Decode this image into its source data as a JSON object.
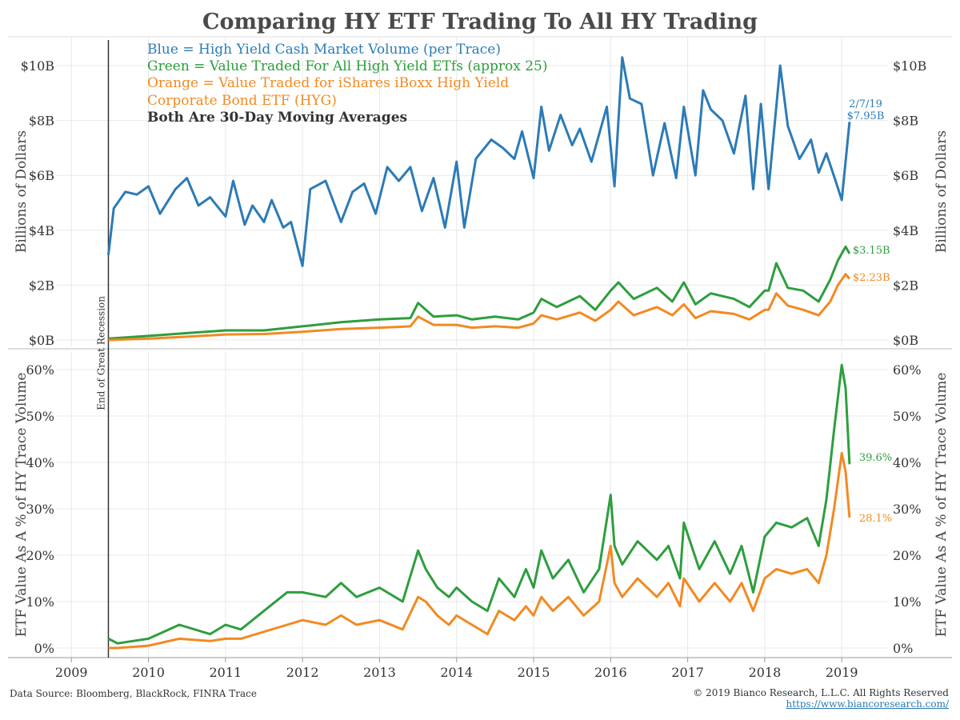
{
  "title": "Comparing HY ETF Trading To All HY Trading",
  "legend": {
    "blue": "Blue = High Yield Cash Market Volume (per Trace)",
    "green": "Green = Value Traded For All High Yield ETfs (approx 25)",
    "orange1": "Orange = Value Traded for iShares iBoxx High Yield",
    "orange2": "Corporate Bond ETF (HYG)",
    "note": "Both Are 30-Day Moving Averages"
  },
  "colors": {
    "blue": "#2c7bb6",
    "green": "#2e9e3e",
    "orange": "#f28a22",
    "grid": "#e8e8e8",
    "axis": "#666666"
  },
  "footer": {
    "source": "Data Source: Bloomberg, BlackRock, FINRA Trace",
    "copyright": "© 2019 Bianco Research, L.L.C. All Rights Reserved",
    "url": "https://www.biancoresearch.com/"
  },
  "chart_data": [
    {
      "type": "line",
      "panel": "top",
      "ylabel": "Billions of Dollars",
      "ylim": [
        0,
        10.5
      ],
      "yticks": [
        0,
        2,
        4,
        6,
        8,
        10
      ],
      "ytick_labels": [
        "$0B",
        "$2B",
        "$4B",
        "$6B",
        "$8B",
        "$10B"
      ],
      "xlim": [
        2008.8,
        2019.6
      ],
      "xticks": [
        2009,
        2010,
        2011,
        2012,
        2013,
        2014,
        2015,
        2016,
        2017,
        2018,
        2019
      ],
      "vline": {
        "x": 2009.48,
        "label": "End of Great Recession"
      },
      "annotations": {
        "date": "2/7/19",
        "blue": "$7.95B",
        "green": "$3.15B",
        "orange": "$2.23B"
      },
      "series": [
        {
          "color": "blue",
          "x": [
            2009.48,
            2009.55,
            2009.7,
            2009.85,
            2010.0,
            2010.15,
            2010.35,
            2010.5,
            2010.65,
            2010.8,
            2011.0,
            2011.1,
            2011.25,
            2011.35,
            2011.5,
            2011.6,
            2011.75,
            2011.85,
            2012.0,
            2012.1,
            2012.3,
            2012.5,
            2012.65,
            2012.8,
            2012.95,
            2013.1,
            2013.25,
            2013.4,
            2013.55,
            2013.7,
            2013.85,
            2014.0,
            2014.1,
            2014.25,
            2014.45,
            2014.6,
            2014.75,
            2014.85,
            2015.0,
            2015.1,
            2015.2,
            2015.35,
            2015.5,
            2015.6,
            2015.75,
            2015.95,
            2016.05,
            2016.15,
            2016.25,
            2016.4,
            2016.55,
            2016.7,
            2016.85,
            2016.95,
            2017.1,
            2017.2,
            2017.3,
            2017.45,
            2017.6,
            2017.75,
            2017.85,
            2017.95,
            2018.05,
            2018.2,
            2018.3,
            2018.45,
            2018.6,
            2018.7,
            2018.8,
            2018.92,
            2019.0,
            2019.1
          ],
          "values": [
            3.1,
            4.8,
            5.4,
            5.3,
            5.6,
            4.6,
            5.5,
            5.9,
            4.9,
            5.2,
            4.5,
            5.8,
            4.2,
            4.9,
            4.3,
            5.1,
            4.1,
            4.3,
            2.7,
            5.5,
            5.8,
            4.3,
            5.4,
            5.7,
            4.6,
            6.3,
            5.8,
            6.3,
            4.7,
            5.9,
            4.1,
            6.5,
            4.1,
            6.6,
            7.3,
            7.0,
            6.6,
            7.6,
            5.9,
            8.5,
            6.9,
            8.2,
            7.1,
            7.7,
            6.5,
            8.5,
            5.6,
            10.3,
            8.8,
            8.6,
            6.0,
            7.9,
            5.9,
            8.5,
            6.0,
            9.1,
            8.4,
            8.0,
            6.8,
            8.9,
            5.5,
            8.6,
            5.5,
            10.0,
            7.8,
            6.6,
            7.3,
            6.1,
            6.8,
            5.8,
            5.1,
            7.95
          ]
        },
        {
          "color": "green",
          "x": [
            2009.48,
            2010.0,
            2010.5,
            2011.0,
            2011.5,
            2012.0,
            2012.5,
            2013.0,
            2013.4,
            2013.5,
            2013.7,
            2014.0,
            2014.2,
            2014.5,
            2014.8,
            2015.0,
            2015.1,
            2015.3,
            2015.6,
            2015.8,
            2016.0,
            2016.1,
            2016.3,
            2016.6,
            2016.8,
            2016.95,
            2017.1,
            2017.3,
            2017.6,
            2017.8,
            2018.0,
            2018.05,
            2018.15,
            2018.3,
            2018.5,
            2018.7,
            2018.85,
            2018.95,
            2019.05,
            2019.1
          ],
          "values": [
            0.05,
            0.15,
            0.25,
            0.35,
            0.35,
            0.5,
            0.65,
            0.75,
            0.8,
            1.35,
            0.85,
            0.9,
            0.75,
            0.85,
            0.75,
            1.0,
            1.5,
            1.2,
            1.6,
            1.1,
            1.8,
            2.1,
            1.5,
            1.9,
            1.4,
            2.1,
            1.3,
            1.7,
            1.5,
            1.2,
            1.8,
            1.8,
            2.8,
            1.9,
            1.8,
            1.4,
            2.2,
            2.9,
            3.4,
            3.15
          ]
        },
        {
          "color": "orange",
          "x": [
            2009.48,
            2010.0,
            2010.5,
            2011.0,
            2011.5,
            2012.0,
            2012.5,
            2013.0,
            2013.4,
            2013.5,
            2013.7,
            2014.0,
            2014.2,
            2014.5,
            2014.8,
            2015.0,
            2015.1,
            2015.3,
            2015.6,
            2015.8,
            2016.0,
            2016.1,
            2016.3,
            2016.6,
            2016.8,
            2016.95,
            2017.1,
            2017.3,
            2017.6,
            2017.8,
            2018.0,
            2018.05,
            2018.15,
            2018.3,
            2018.5,
            2018.7,
            2018.85,
            2018.95,
            2019.05,
            2019.1
          ],
          "values": [
            0.0,
            0.05,
            0.12,
            0.2,
            0.22,
            0.3,
            0.4,
            0.45,
            0.5,
            0.85,
            0.55,
            0.55,
            0.45,
            0.5,
            0.45,
            0.6,
            0.9,
            0.75,
            1.0,
            0.7,
            1.1,
            1.4,
            0.9,
            1.2,
            0.9,
            1.3,
            0.8,
            1.05,
            0.95,
            0.75,
            1.1,
            1.1,
            1.7,
            1.25,
            1.1,
            0.9,
            1.4,
            2.0,
            2.4,
            2.23
          ]
        }
      ]
    },
    {
      "type": "line",
      "panel": "bottom",
      "ylabel": "ETF Value As A % of HY Trace Volume",
      "ylim": [
        0,
        62
      ],
      "yticks": [
        0,
        10,
        20,
        30,
        40,
        50,
        60
      ],
      "ytick_labels": [
        "0%",
        "10%",
        "20%",
        "30%",
        "40%",
        "50%",
        "60%"
      ],
      "xlim": [
        2008.8,
        2019.6
      ],
      "xticks": [
        2009,
        2010,
        2011,
        2012,
        2013,
        2014,
        2015,
        2016,
        2017,
        2018,
        2019
      ],
      "xtick_labels": [
        "2009",
        "2010",
        "2011",
        "2012",
        "2013",
        "2014",
        "2015",
        "2016",
        "2017",
        "2018",
        "2019"
      ],
      "annotations": {
        "green": "39.6%",
        "orange": "28.1%"
      },
      "series": [
        {
          "color": "green",
          "x": [
            2009.48,
            2009.6,
            2010.0,
            2010.4,
            2010.8,
            2011.0,
            2011.2,
            2011.5,
            2011.8,
            2012.0,
            2012.3,
            2012.5,
            2012.7,
            2013.0,
            2013.3,
            2013.5,
            2013.6,
            2013.75,
            2013.9,
            2014.0,
            2014.2,
            2014.4,
            2014.55,
            2014.75,
            2014.9,
            2015.0,
            2015.1,
            2015.25,
            2015.45,
            2015.65,
            2015.85,
            2016.0,
            2016.05,
            2016.15,
            2016.35,
            2016.6,
            2016.75,
            2016.9,
            2016.95,
            2017.15,
            2017.35,
            2017.55,
            2017.7,
            2017.85,
            2018.0,
            2018.15,
            2018.35,
            2018.55,
            2018.7,
            2018.8,
            2018.9,
            2019.0,
            2019.05,
            2019.1
          ],
          "values": [
            2,
            1,
            2,
            5,
            3,
            5,
            4,
            8,
            12,
            12,
            11,
            14,
            11,
            13,
            10,
            21,
            17,
            13,
            11,
            13,
            10,
            8,
            15,
            11,
            17,
            13,
            21,
            15,
            19,
            12,
            17,
            33,
            22,
            18,
            23,
            19,
            22,
            15,
            27,
            17,
            23,
            16,
            22,
            12,
            24,
            27,
            26,
            28,
            22,
            32,
            47,
            61,
            56,
            39.6
          ]
        },
        {
          "color": "orange",
          "x": [
            2009.48,
            2009.6,
            2010.0,
            2010.4,
            2010.8,
            2011.0,
            2011.2,
            2011.5,
            2011.8,
            2012.0,
            2012.3,
            2012.5,
            2012.7,
            2013.0,
            2013.3,
            2013.5,
            2013.6,
            2013.75,
            2013.9,
            2014.0,
            2014.2,
            2014.4,
            2014.55,
            2014.75,
            2014.9,
            2015.0,
            2015.1,
            2015.25,
            2015.45,
            2015.65,
            2015.85,
            2016.0,
            2016.05,
            2016.15,
            2016.35,
            2016.6,
            2016.75,
            2016.9,
            2016.95,
            2017.15,
            2017.35,
            2017.55,
            2017.7,
            2017.85,
            2018.0,
            2018.15,
            2018.35,
            2018.55,
            2018.7,
            2018.8,
            2018.9,
            2019.0,
            2019.05,
            2019.1
          ],
          "values": [
            0,
            0,
            0.5,
            2,
            1.5,
            2,
            2,
            3.5,
            5,
            6,
            5,
            7,
            5,
            6,
            4,
            11,
            10,
            7,
            5,
            7,
            5,
            3,
            8,
            6,
            9,
            7,
            11,
            8,
            11,
            7,
            10,
            22,
            14,
            11,
            15,
            11,
            14,
            9,
            15,
            10,
            14,
            10,
            14,
            8,
            15,
            17,
            16,
            17,
            14,
            20,
            30,
            42,
            38,
            28.1
          ]
        }
      ]
    }
  ]
}
